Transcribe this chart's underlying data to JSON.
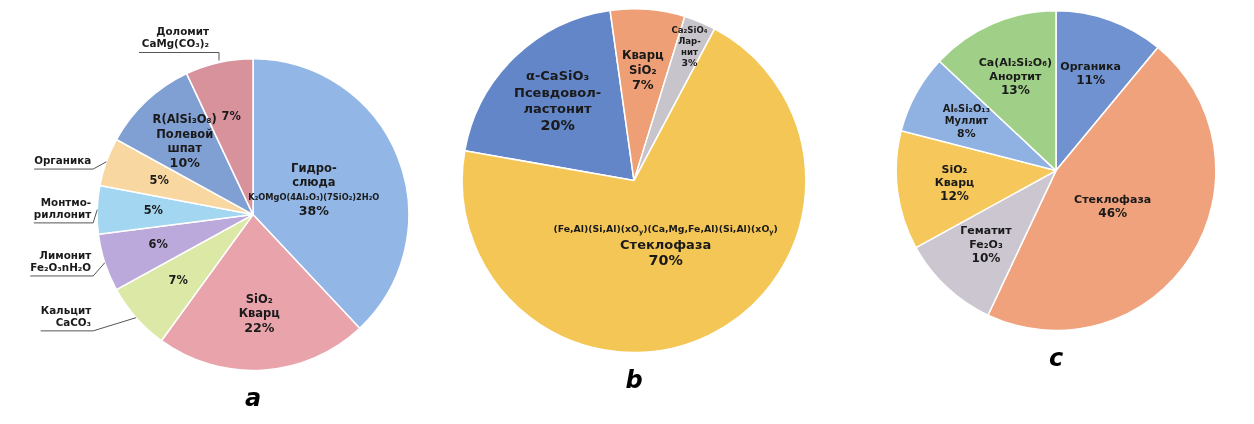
{
  "chart_data": [
    {
      "type": "pie",
      "title": "a",
      "legend": false,
      "categories": [
        "Гидро-\nслюда\nK₂OMgO(4Al₂O₃)(7SiO₂)2H₂O",
        "SiO₂\nКварц",
        "Кальцит\nCaCO₃",
        "Лимонит\nFe₂O₃nH₂O",
        "Монтмо-\nриллонит",
        "Органика",
        "R(AlSi₃O₈)\nПолевой\nшпат",
        "Доломит\nCaMg(CO₃)₂"
      ],
      "values": [
        38,
        22,
        7,
        6,
        5,
        5,
        10,
        7
      ],
      "value_labels": [
        "38%",
        "22%",
        "7%",
        "6%",
        "5%",
        "5%",
        "10%",
        "7%"
      ],
      "colors": [
        "#92b7e6",
        "#e8a3ab",
        "#dbe8a6",
        "#bba9db",
        "#a3d6f0",
        "#f8d7a0",
        "#809fd2",
        "#d8929c"
      ]
    },
    {
      "type": "pie",
      "title": "b",
      "legend": false,
      "categories": [
        "α-CaSiO₃\nПсевдовол-\nластонит",
        "Кварц\nSiO₂",
        "Ca₂SiO₄\nЛар-\nнит",
        "(Fe,Al)(Si,Al)(xO$_{y}$)(Ca,Mg,Fe,Al)(Si,Al)(xO$_{y}$)\nСтеклофаза"
      ],
      "values": [
        20,
        7,
        3,
        70
      ],
      "value_labels": [
        "20%",
        "7%",
        "3%",
        "70%"
      ],
      "colors": [
        "#6386c8",
        "#ee9f75",
        "#c8c4cb",
        "#f4c656"
      ]
    },
    {
      "type": "pie",
      "title": "c",
      "legend": false,
      "categories": [
        "Органика",
        "Стеклофаза",
        "Гематит\nFe₂O₃",
        "SiO₂\nКварц",
        "Al₆Si₂O₁₃\nМуллит",
        "Ca(Al₂Si₂O₆)\nАнортит"
      ],
      "values": [
        11,
        46,
        10,
        12,
        8,
        13
      ],
      "value_labels": [
        "11%",
        "46%",
        "10%",
        "12%",
        "8%",
        "13%"
      ],
      "colors": [
        "#7092d0",
        "#f0a27d",
        "#cbc6cf",
        "#f6c85c",
        "#90b2e2",
        "#a0d087"
      ]
    }
  ]
}
